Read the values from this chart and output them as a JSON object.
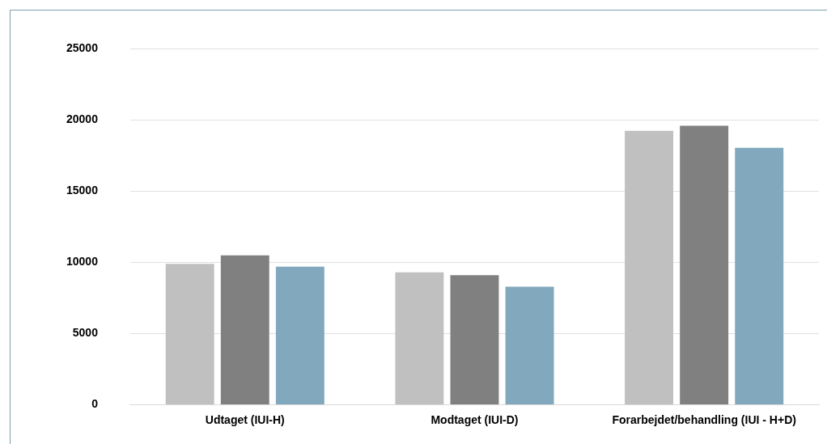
{
  "chart_data": {
    "type": "bar",
    "categories": [
      "Udtaget (IUI-H)",
      "Modtaget (IUI-D)",
      "Forarbejdet/behandling (IUI - H+D)"
    ],
    "series": [
      {
        "color": "#c0c0c0",
        "values": [
          9900,
          9300,
          19250
        ]
      },
      {
        "color": "#808080",
        "values": [
          10500,
          9100,
          19600
        ]
      },
      {
        "color": "#82a8bd",
        "values": [
          9700,
          8300,
          18050
        ]
      }
    ],
    "ylim": [
      0,
      25000
    ],
    "yticks": [
      0,
      5000,
      10000,
      15000,
      20000,
      25000
    ],
    "grid": "y",
    "legend": false
  }
}
